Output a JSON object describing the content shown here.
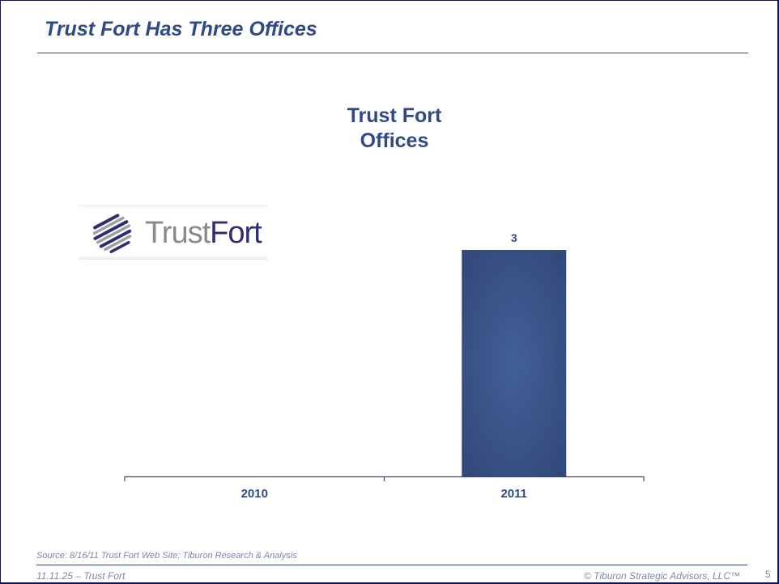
{
  "slide": {
    "title": "Trust Fort Has Three Offices",
    "source": "Source:  8/16/11 Trust Fort Web Site; Tiburon Research & Analysis",
    "footer_left": "11.11.25  – Trust Fort",
    "footer_right": "© Tiburon Strategic Advisors, LLC™",
    "page_number": "5"
  },
  "logo": {
    "text_part1": "Trust",
    "text_part2": "Fort"
  },
  "colors": {
    "accent": "#2e4a86",
    "bar": "#3d5894",
    "bar_edge": "#33497a",
    "border": "#141452",
    "muted_text": "#7c86a4"
  },
  "chart_data": {
    "type": "bar",
    "title_line1": "Trust Fort",
    "title_line2": "Offices",
    "categories": [
      "2010",
      "2011"
    ],
    "values": [
      null,
      3
    ],
    "data_labels": [
      "",
      "3"
    ],
    "xlabel": "",
    "ylabel": "",
    "ylim": [
      0,
      3.6
    ],
    "grid": false,
    "legend": "none"
  }
}
